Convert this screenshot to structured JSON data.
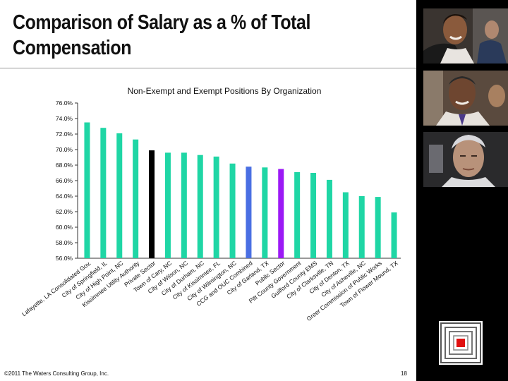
{
  "slide": {
    "title": "Comparison of Salary as a % of Total Compensation",
    "footer": "©2011 The Waters Consulting Group, Inc.",
    "page_number": "18"
  },
  "sidebar": {
    "photos": [
      "smiling-woman-photo",
      "smiling-man-photo",
      "gray-haired-man-photo"
    ],
    "logo": "waters-consulting-logo"
  },
  "colors": {
    "default_bar": "#1fd6a5",
    "highlight_black": "#000000",
    "highlight_blue": "#4a6fe3",
    "highlight_purple": "#9b19f5"
  },
  "chart_data": {
    "type": "bar",
    "title": "Non-Exempt and Exempt Positions By Organization",
    "ylim": [
      56,
      76
    ],
    "yticks": [
      "76.0%",
      "74.0%",
      "72.0%",
      "70.0%",
      "68.0%",
      "66.0%",
      "64.0%",
      "62.0%",
      "60.0%",
      "58.0%",
      "56.0%"
    ],
    "grid": false,
    "categories": [
      "Lafayette, LA Consolidated Gov.",
      "City of Springfield, IL",
      "City of High Point, NC",
      "Kissimmee Utility Authority",
      "Private Sector",
      "Town of Cary, NC",
      "City of Wilson, NC",
      "City of Durham, NC",
      "City of Kissimmee, FL",
      "City of Wilmington, NC",
      "CCG and OUC Combined",
      "City of Garland, TX",
      "Public Sector",
      "Pitt County Government",
      "Guilford County EMS",
      "City of Clarksville, TN",
      "City of Denton, TX",
      "City of Asheville, NC",
      "Greer Commission of Public Works",
      "Town of Flower Mound, TX"
    ],
    "values": [
      73.5,
      72.8,
      72.1,
      71.3,
      69.9,
      69.6,
      69.6,
      69.3,
      69.1,
      68.2,
      67.8,
      67.7,
      67.5,
      67.1,
      67.0,
      66.1,
      64.5,
      64.0,
      63.9,
      61.9
    ],
    "bar_colors": [
      "#1fd6a5",
      "#1fd6a5",
      "#1fd6a5",
      "#1fd6a5",
      "#000000",
      "#1fd6a5",
      "#1fd6a5",
      "#1fd6a5",
      "#1fd6a5",
      "#1fd6a5",
      "#4a6fe3",
      "#1fd6a5",
      "#9b19f5",
      "#1fd6a5",
      "#1fd6a5",
      "#1fd6a5",
      "#1fd6a5",
      "#1fd6a5",
      "#1fd6a5",
      "#1fd6a5"
    ]
  }
}
